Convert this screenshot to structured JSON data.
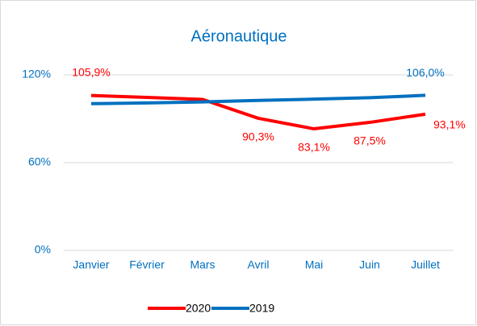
{
  "chart_data": {
    "type": "line",
    "title": "Aéronautique",
    "categories": [
      "Janvier",
      "Février",
      "Mars",
      "Avril",
      "Mai",
      "Juin",
      "Juillet"
    ],
    "series": [
      {
        "name": "2020",
        "color": "#ff0000",
        "values": [
          105.9,
          104.6,
          103.2,
          90.3,
          83.1,
          87.5,
          93.1
        ],
        "value_labels": [
          "105,9%",
          null,
          null,
          "90,3%",
          "83,1%",
          "87,5%",
          "93,1%"
        ]
      },
      {
        "name": "2019",
        "color": "#0070c0",
        "values": [
          100.3,
          100.8,
          101.5,
          102.5,
          103.4,
          104.4,
          106.0
        ],
        "value_labels": [
          null,
          null,
          null,
          null,
          null,
          null,
          "106,0%"
        ]
      }
    ],
    "ylim": [
      0,
      120
    ],
    "yticks": [
      {
        "value": 0,
        "label": "0%"
      },
      {
        "value": 60,
        "label": "60%"
      },
      {
        "value": 120,
        "label": "120%"
      }
    ],
    "grid": true,
    "legend": "bottom"
  }
}
